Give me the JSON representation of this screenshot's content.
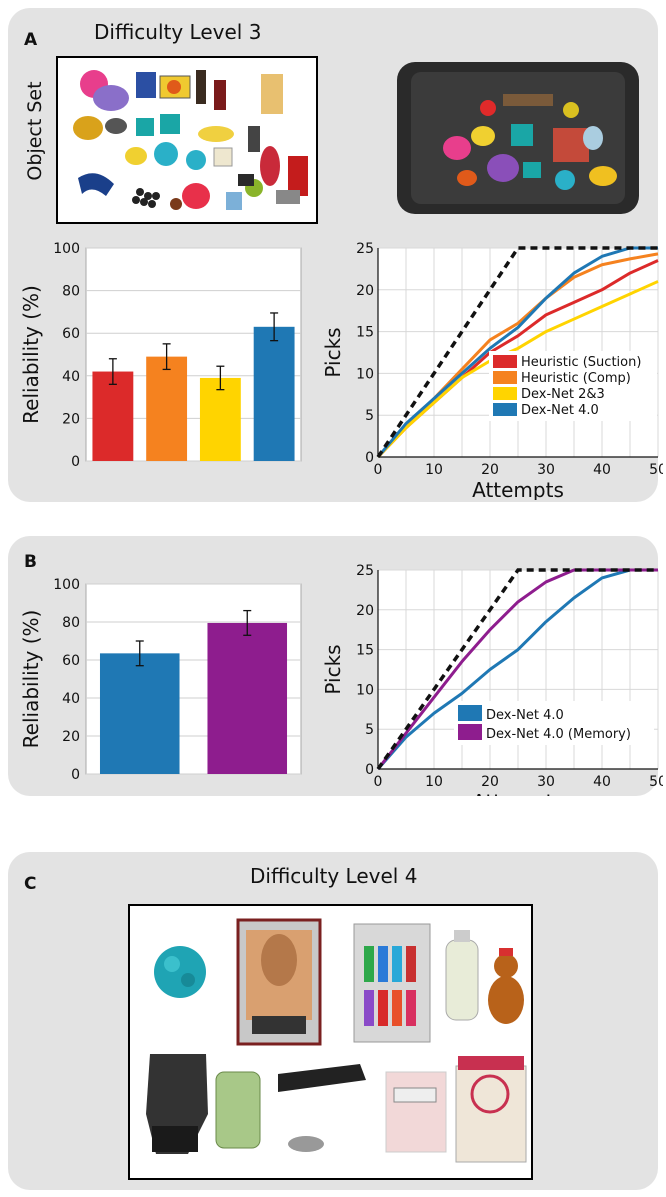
{
  "panelA": {
    "label": "A",
    "title": "Difficulty Level 3",
    "object_set_label": "Object Set"
  },
  "panelB": {
    "label": "B"
  },
  "panelC": {
    "label": "C",
    "title": "Difficulty Level 4"
  },
  "colors": {
    "heuristic_suction": "#dc2a2a",
    "heuristic_comp": "#f5821f",
    "dexnet23": "#ffd400",
    "dexnet4": "#1f78b4",
    "dexnet4_memory": "#8e1d8e",
    "oracle": "#111111"
  },
  "chart_data": [
    {
      "id": "A-bar",
      "type": "bar",
      "ylabel": "Reliability (%)",
      "ylim": [
        0,
        100
      ],
      "yticks": [
        0,
        20,
        40,
        60,
        80,
        100
      ],
      "grid": true,
      "categories": [
        "Heuristic (Suction)",
        "Heuristic (Comp)",
        "Dex-Net 2&3",
        "Dex-Net 4.0"
      ],
      "values": [
        42,
        49,
        39,
        63
      ],
      "errors": [
        6,
        6,
        5.5,
        6.5
      ],
      "colors": [
        "#dc2a2a",
        "#f5821f",
        "#ffd400",
        "#1f78b4"
      ]
    },
    {
      "id": "A-line",
      "type": "line",
      "xlabel": "Attempts",
      "ylabel": "Picks",
      "xlim": [
        0,
        50
      ],
      "ylim": [
        0,
        25
      ],
      "xticks": [
        0,
        10,
        20,
        30,
        40,
        50
      ],
      "yticks": [
        0,
        5,
        10,
        15,
        20,
        25
      ],
      "grid": true,
      "legend": "bottom-right",
      "oracle": {
        "x": [
          0,
          25,
          50
        ],
        "y": [
          0,
          25,
          25
        ]
      },
      "series": [
        {
          "name": "Heuristic (Suction)",
          "color": "#dc2a2a",
          "x": [
            0,
            5,
            10,
            15,
            20,
            25,
            30,
            35,
            40,
            45,
            50
          ],
          "y": [
            0,
            3.5,
            6.5,
            9.5,
            12.5,
            14.5,
            17,
            18.5,
            20,
            22,
            23.5
          ]
        },
        {
          "name": "Heuristic (Comp)",
          "color": "#f5821f",
          "x": [
            0,
            5,
            10,
            15,
            20,
            25,
            30,
            35,
            40,
            45,
            50
          ],
          "y": [
            0,
            3.5,
            7,
            10.5,
            14,
            16,
            19,
            21.5,
            23,
            23.7,
            24.3
          ]
        },
        {
          "name": "Dex-Net 2&3",
          "color": "#ffd400",
          "x": [
            0,
            5,
            10,
            15,
            20,
            25,
            30,
            35,
            40,
            45,
            50
          ],
          "y": [
            0,
            3.5,
            6.5,
            9.5,
            11.5,
            13,
            15,
            16.5,
            18,
            19.5,
            21
          ]
        },
        {
          "name": "Dex-Net 4.0",
          "color": "#1f78b4",
          "x": [
            0,
            5,
            10,
            15,
            20,
            25,
            30,
            35,
            40,
            45,
            50
          ],
          "y": [
            0,
            4,
            7,
            10,
            13,
            15.5,
            19,
            22,
            24,
            25,
            25
          ]
        }
      ]
    },
    {
      "id": "B-bar",
      "type": "bar",
      "ylabel": "Reliability (%)",
      "ylim": [
        0,
        100
      ],
      "yticks": [
        0,
        20,
        40,
        60,
        80,
        100
      ],
      "grid": true,
      "categories": [
        "Dex-Net 4.0",
        "Dex-Net 4.0 (Memory)"
      ],
      "values": [
        63.5,
        79.5
      ],
      "errors": [
        6.5,
        6.5
      ],
      "colors": [
        "#1f78b4",
        "#8e1d8e"
      ]
    },
    {
      "id": "B-line",
      "type": "line",
      "xlabel": "Attempts",
      "ylabel": "Picks",
      "xlim": [
        0,
        50
      ],
      "ylim": [
        0,
        25
      ],
      "xticks": [
        0,
        10,
        20,
        30,
        40,
        50
      ],
      "yticks": [
        0,
        5,
        10,
        15,
        20,
        25
      ],
      "grid": true,
      "legend": "bottom-right",
      "oracle": {
        "x": [
          0,
          25,
          50
        ],
        "y": [
          0,
          25,
          25
        ]
      },
      "series": [
        {
          "name": "Dex-Net 4.0",
          "color": "#1f78b4",
          "x": [
            0,
            5,
            10,
            15,
            20,
            25,
            30,
            35,
            40,
            45,
            50
          ],
          "y": [
            0,
            4,
            7,
            9.5,
            12.5,
            15,
            18.5,
            21.5,
            24,
            25,
            25
          ]
        },
        {
          "name": "Dex-Net 4.0 (Memory)",
          "color": "#8e1d8e",
          "x": [
            0,
            5,
            10,
            15,
            20,
            25,
            30,
            35,
            40,
            45,
            50
          ],
          "y": [
            0,
            4.5,
            9,
            13.5,
            17.5,
            21,
            23.5,
            25,
            25,
            25,
            25
          ]
        }
      ]
    }
  ]
}
